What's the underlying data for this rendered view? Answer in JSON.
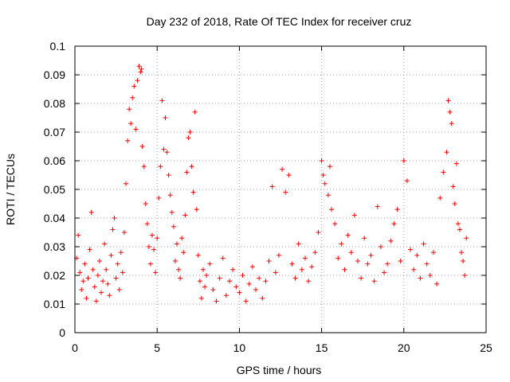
{
  "chart_data": {
    "type": "scatter",
    "title": "Day 232 of 2018, Rate Of TEC Index for receiver cruz",
    "xlabel": "GPS time / hours",
    "ylabel": "ROTI / TECUs",
    "xlim": [
      0,
      25
    ],
    "ylim": [
      0,
      0.1
    ],
    "x_ticks": [
      0,
      5,
      10,
      15,
      20,
      25
    ],
    "y_ticks": [
      0,
      0.01,
      0.02,
      0.03,
      0.04,
      0.05,
      0.06,
      0.07,
      0.08,
      0.09,
      0.1
    ],
    "x_tick_labels": [
      "0",
      "5",
      "10",
      "15",
      "20",
      "25"
    ],
    "y_tick_labels": [
      "0",
      "0.01",
      "0.02",
      "0.03",
      "0.04",
      "0.05",
      "0.06",
      "0.07",
      "0.08",
      "0.09",
      "0.1"
    ],
    "grid": true,
    "marker": "plus",
    "color": "#ff0000",
    "series": [
      {
        "x": [
          0.1,
          0.2,
          0.3,
          0.4,
          0.5,
          0.6,
          0.7,
          0.8,
          0.9,
          1.0,
          1.1,
          1.2,
          1.3,
          1.4,
          1.5,
          1.6,
          1.7,
          1.8,
          1.9,
          2.0,
          2.1,
          2.2,
          2.3,
          2.4,
          2.5,
          2.6,
          2.7,
          2.8,
          2.9,
          3.0,
          3.1,
          3.2,
          3.3,
          3.4,
          3.5,
          3.6,
          3.7,
          3.8,
          3.9,
          4.0,
          4.05,
          4.1,
          4.2,
          4.3,
          4.4,
          4.5,
          4.6,
          4.7,
          4.8,
          4.9,
          5.0,
          5.1,
          5.2,
          5.3,
          5.4,
          5.5,
          5.6,
          5.7,
          5.8,
          5.9,
          6.0,
          6.1,
          6.2,
          6.3,
          6.4,
          6.5,
          6.6,
          6.7,
          6.8,
          6.9,
          7.0,
          7.1,
          7.2,
          7.3,
          7.4,
          7.5,
          7.6,
          7.7,
          7.8,
          7.9,
          8.0,
          8.2,
          8.4,
          8.6,
          8.8,
          9.0,
          9.2,
          9.4,
          9.6,
          9.8,
          10.0,
          10.2,
          10.4,
          10.6,
          10.8,
          11.0,
          11.2,
          11.4,
          11.6,
          11.8,
          12.0,
          12.2,
          12.4,
          12.6,
          12.8,
          13.0,
          13.2,
          13.4,
          13.6,
          13.8,
          14.0,
          14.2,
          14.4,
          14.6,
          14.8,
          15.0,
          15.1,
          15.2,
          15.4,
          15.5,
          15.6,
          15.8,
          16.0,
          16.2,
          16.4,
          16.6,
          16.8,
          17.0,
          17.2,
          17.4,
          17.6,
          17.8,
          18.0,
          18.2,
          18.4,
          18.6,
          18.8,
          19.0,
          19.2,
          19.4,
          19.6,
          19.8,
          20.0,
          20.2,
          20.4,
          20.6,
          20.8,
          21.0,
          21.2,
          21.4,
          21.6,
          21.8,
          22.0,
          22.2,
          22.4,
          22.6,
          22.7,
          22.8,
          22.9,
          23.0,
          23.1,
          23.2,
          23.3,
          23.4,
          23.5,
          23.6,
          23.7,
          23.8
        ],
        "y": [
          0.026,
          0.034,
          0.021,
          0.015,
          0.018,
          0.024,
          0.012,
          0.019,
          0.029,
          0.042,
          0.022,
          0.016,
          0.011,
          0.02,
          0.025,
          0.014,
          0.018,
          0.031,
          0.022,
          0.017,
          0.013,
          0.027,
          0.036,
          0.04,
          0.019,
          0.024,
          0.015,
          0.028,
          0.021,
          0.035,
          0.052,
          0.067,
          0.078,
          0.073,
          0.082,
          0.086,
          0.071,
          0.088,
          0.093,
          0.091,
          0.092,
          0.065,
          0.058,
          0.045,
          0.038,
          0.03,
          0.024,
          0.034,
          0.029,
          0.021,
          0.033,
          0.047,
          0.058,
          0.081,
          0.064,
          0.075,
          0.063,
          0.055,
          0.048,
          0.042,
          0.037,
          0.025,
          0.031,
          0.022,
          0.019,
          0.033,
          0.028,
          0.041,
          0.056,
          0.068,
          0.07,
          0.058,
          0.049,
          0.077,
          0.043,
          0.027,
          0.018,
          0.012,
          0.022,
          0.016,
          0.02,
          0.024,
          0.015,
          0.011,
          0.019,
          0.026,
          0.013,
          0.018,
          0.022,
          0.016,
          0.014,
          0.02,
          0.011,
          0.017,
          0.023,
          0.015,
          0.019,
          0.012,
          0.018,
          0.025,
          0.051,
          0.021,
          0.027,
          0.057,
          0.049,
          0.055,
          0.024,
          0.019,
          0.031,
          0.022,
          0.026,
          0.018,
          0.023,
          0.028,
          0.035,
          0.06,
          0.055,
          0.052,
          0.048,
          0.058,
          0.043,
          0.038,
          0.026,
          0.031,
          0.022,
          0.034,
          0.028,
          0.041,
          0.025,
          0.019,
          0.033,
          0.024,
          0.027,
          0.018,
          0.044,
          0.03,
          0.021,
          0.024,
          0.032,
          0.038,
          0.043,
          0.025,
          0.06,
          0.053,
          0.029,
          0.022,
          0.027,
          0.019,
          0.031,
          0.024,
          0.02,
          0.028,
          0.017,
          0.047,
          0.056,
          0.063,
          0.081,
          0.077,
          0.073,
          0.051,
          0.045,
          0.059,
          0.038,
          0.036,
          0.028,
          0.025,
          0.02,
          0.033
        ]
      }
    ]
  }
}
